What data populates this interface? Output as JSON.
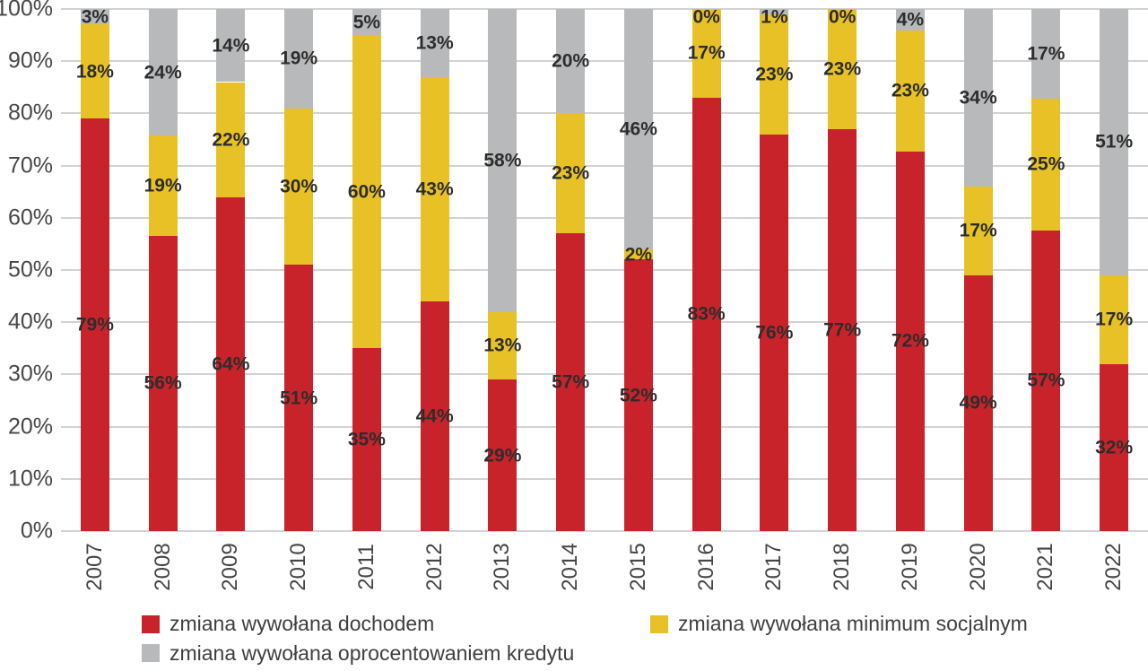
{
  "chart_data": {
    "type": "bar",
    "stacked": true,
    "percent_stacked": true,
    "title": "",
    "xlabel": "",
    "ylabel": "",
    "ylim": [
      0,
      100
    ],
    "grid": true,
    "legend_position": "bottom",
    "data_labels": true,
    "yticks": [
      "0%",
      "10%",
      "20%",
      "30%",
      "40%",
      "50%",
      "60%",
      "70%",
      "80%",
      "90%",
      "100%"
    ],
    "categories": [
      "2007",
      "2008",
      "2009",
      "2010",
      "2011",
      "2012",
      "2013",
      "2014",
      "2015",
      "2016",
      "2017",
      "2018",
      "2019",
      "2020",
      "2021",
      "2022"
    ],
    "series": [
      {
        "name": "zmiana wywołana dochodem",
        "key": "dochodem",
        "color": "#c8232b",
        "values": [
          79,
          56,
          64,
          51,
          35,
          44,
          29,
          57,
          52,
          83,
          76,
          77,
          72,
          49,
          57,
          32
        ]
      },
      {
        "name": "zmiana wywołana minimum socjalnym",
        "key": "minimum-socjalnym",
        "color": "#e8c127",
        "values": [
          18,
          19,
          22,
          30,
          60,
          43,
          13,
          23,
          2,
          17,
          23,
          23,
          23,
          17,
          25,
          17
        ]
      },
      {
        "name": "zmiana wywołana oprocentowaniem kredytu",
        "key": "oprocentowaniem-kredytu",
        "color": "#b8b9bb",
        "values": [
          3,
          24,
          14,
          19,
          5,
          13,
          58,
          20,
          46,
          0,
          1,
          0,
          4,
          34,
          17,
          51
        ]
      }
    ]
  },
  "colors": {
    "gridline": "#d2d2d2",
    "axis_text": "#474747",
    "data_label_text": "#2d2d2d",
    "legend_text": "#3f3f3f",
    "background": "#ffffff"
  }
}
